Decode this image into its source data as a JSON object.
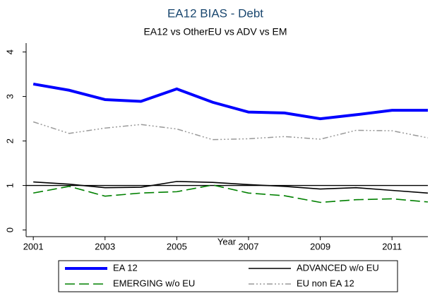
{
  "chart_data": {
    "type": "line",
    "title": "EA12 BIAS - Debt",
    "subtitle": "EA12 vs OtherEU vs ADV vs EM",
    "x_label": "Year",
    "x": [
      2001,
      2002,
      2003,
      2004,
      2005,
      2006,
      2007,
      2008,
      2009,
      2010,
      2011,
      2012
    ],
    "series": [
      {
        "name": "EA 12",
        "color": "#0000ff",
        "values": [
          3.28,
          3.14,
          2.93,
          2.89,
          3.17,
          2.87,
          2.65,
          2.63,
          2.5,
          2.59,
          2.69,
          2.69
        ]
      },
      {
        "name": "ADVANCED w/o EU",
        "color": "#000000",
        "values": [
          1.08,
          1.03,
          0.95,
          0.96,
          1.09,
          1.07,
          1.02,
          0.98,
          0.92,
          0.95,
          0.89,
          0.83
        ]
      },
      {
        "name": "EMERGING w/o EU",
        "color": "#008000",
        "values": [
          0.83,
          0.98,
          0.76,
          0.83,
          0.86,
          1.01,
          0.83,
          0.77,
          0.62,
          0.68,
          0.7,
          0.63
        ]
      },
      {
        "name": "EU non EA 12",
        "color": "#999999",
        "values": [
          2.43,
          2.17,
          2.29,
          2.37,
          2.27,
          2.03,
          2.05,
          2.1,
          2.04,
          2.24,
          2.23,
          2.07
        ]
      }
    ],
    "reference_line": 1,
    "xlim": [
      2000.8,
      2012
    ],
    "xticks": [
      2001,
      2003,
      2005,
      2007,
      2009,
      2011
    ],
    "ylim": [
      -0.15,
      4.2
    ],
    "yticks": [
      0,
      1,
      2,
      3,
      4
    ],
    "grid": false
  }
}
